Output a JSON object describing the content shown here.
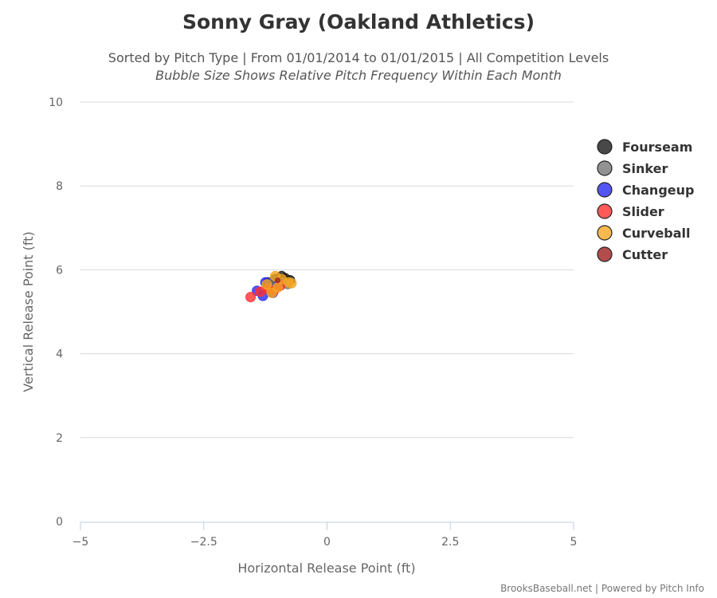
{
  "chart_data": {
    "type": "scatter",
    "title": "Sonny Gray (Oakland Athletics)",
    "subtitle": "Sorted by Pitch Type | From 01/01/2014 to 01/01/2015 | All Competition Levels",
    "subtitle2": "Bubble Size Shows Relative Pitch Frequency Within Each Month",
    "xlabel": "Horizontal Release Point (ft)",
    "ylabel": "Vertical Release Point (ft)",
    "xlim": [
      -5,
      5
    ],
    "ylim": [
      0,
      10
    ],
    "x_ticks": [
      -5,
      -2.5,
      0,
      2.5,
      5
    ],
    "x_tick_labels": [
      "−5",
      "−2.5",
      "0",
      "2.5",
      "5"
    ],
    "y_ticks": [
      0,
      2,
      4,
      6,
      8,
      10
    ],
    "y_tick_labels": [
      "0",
      "2",
      "4",
      "6",
      "8",
      "10"
    ],
    "grid": "horizontal",
    "legend_position": "right",
    "credits": "BrooksBaseball.net | Powered by Pitch Info",
    "series": [
      {
        "name": "Fourseam",
        "color": "#1a1a1a",
        "points": [
          [
            -1.2,
            5.7
          ],
          [
            -1.05,
            5.78
          ],
          [
            -0.92,
            5.85
          ],
          [
            -0.85,
            5.8
          ],
          [
            -0.75,
            5.75
          ],
          [
            -1.1,
            5.65
          ],
          [
            -0.95,
            5.72
          ]
        ]
      },
      {
        "name": "Sinker",
        "color": "#777777",
        "points": [
          [
            -1.15,
            5.68
          ],
          [
            -1.0,
            5.62
          ],
          [
            -0.9,
            5.7
          ],
          [
            -0.8,
            5.66
          ]
        ]
      },
      {
        "name": "Changeup",
        "color": "#2a2af0",
        "points": [
          [
            -1.42,
            5.5
          ],
          [
            -1.3,
            5.38
          ],
          [
            -1.25,
            5.7
          ],
          [
            -1.1,
            5.45
          ],
          [
            -1.0,
            5.6
          ]
        ]
      },
      {
        "name": "Slider",
        "color": "#ff3030",
        "points": [
          [
            -1.55,
            5.35
          ],
          [
            -1.35,
            5.48
          ],
          [
            -1.2,
            5.55
          ],
          [
            -0.95,
            5.62
          ],
          [
            -1.08,
            5.5
          ]
        ]
      },
      {
        "name": "Curveball",
        "color": "#f5a623",
        "points": [
          [
            -1.22,
            5.65
          ],
          [
            -1.12,
            5.45
          ],
          [
            -1.05,
            5.85
          ],
          [
            -0.92,
            5.78
          ],
          [
            -0.78,
            5.7
          ],
          [
            -0.72,
            5.68
          ],
          [
            -1.0,
            5.58
          ]
        ]
      },
      {
        "name": "Cutter",
        "color": "#a02020",
        "points": [
          [
            -1.0,
            5.75
          ]
        ]
      }
    ]
  }
}
